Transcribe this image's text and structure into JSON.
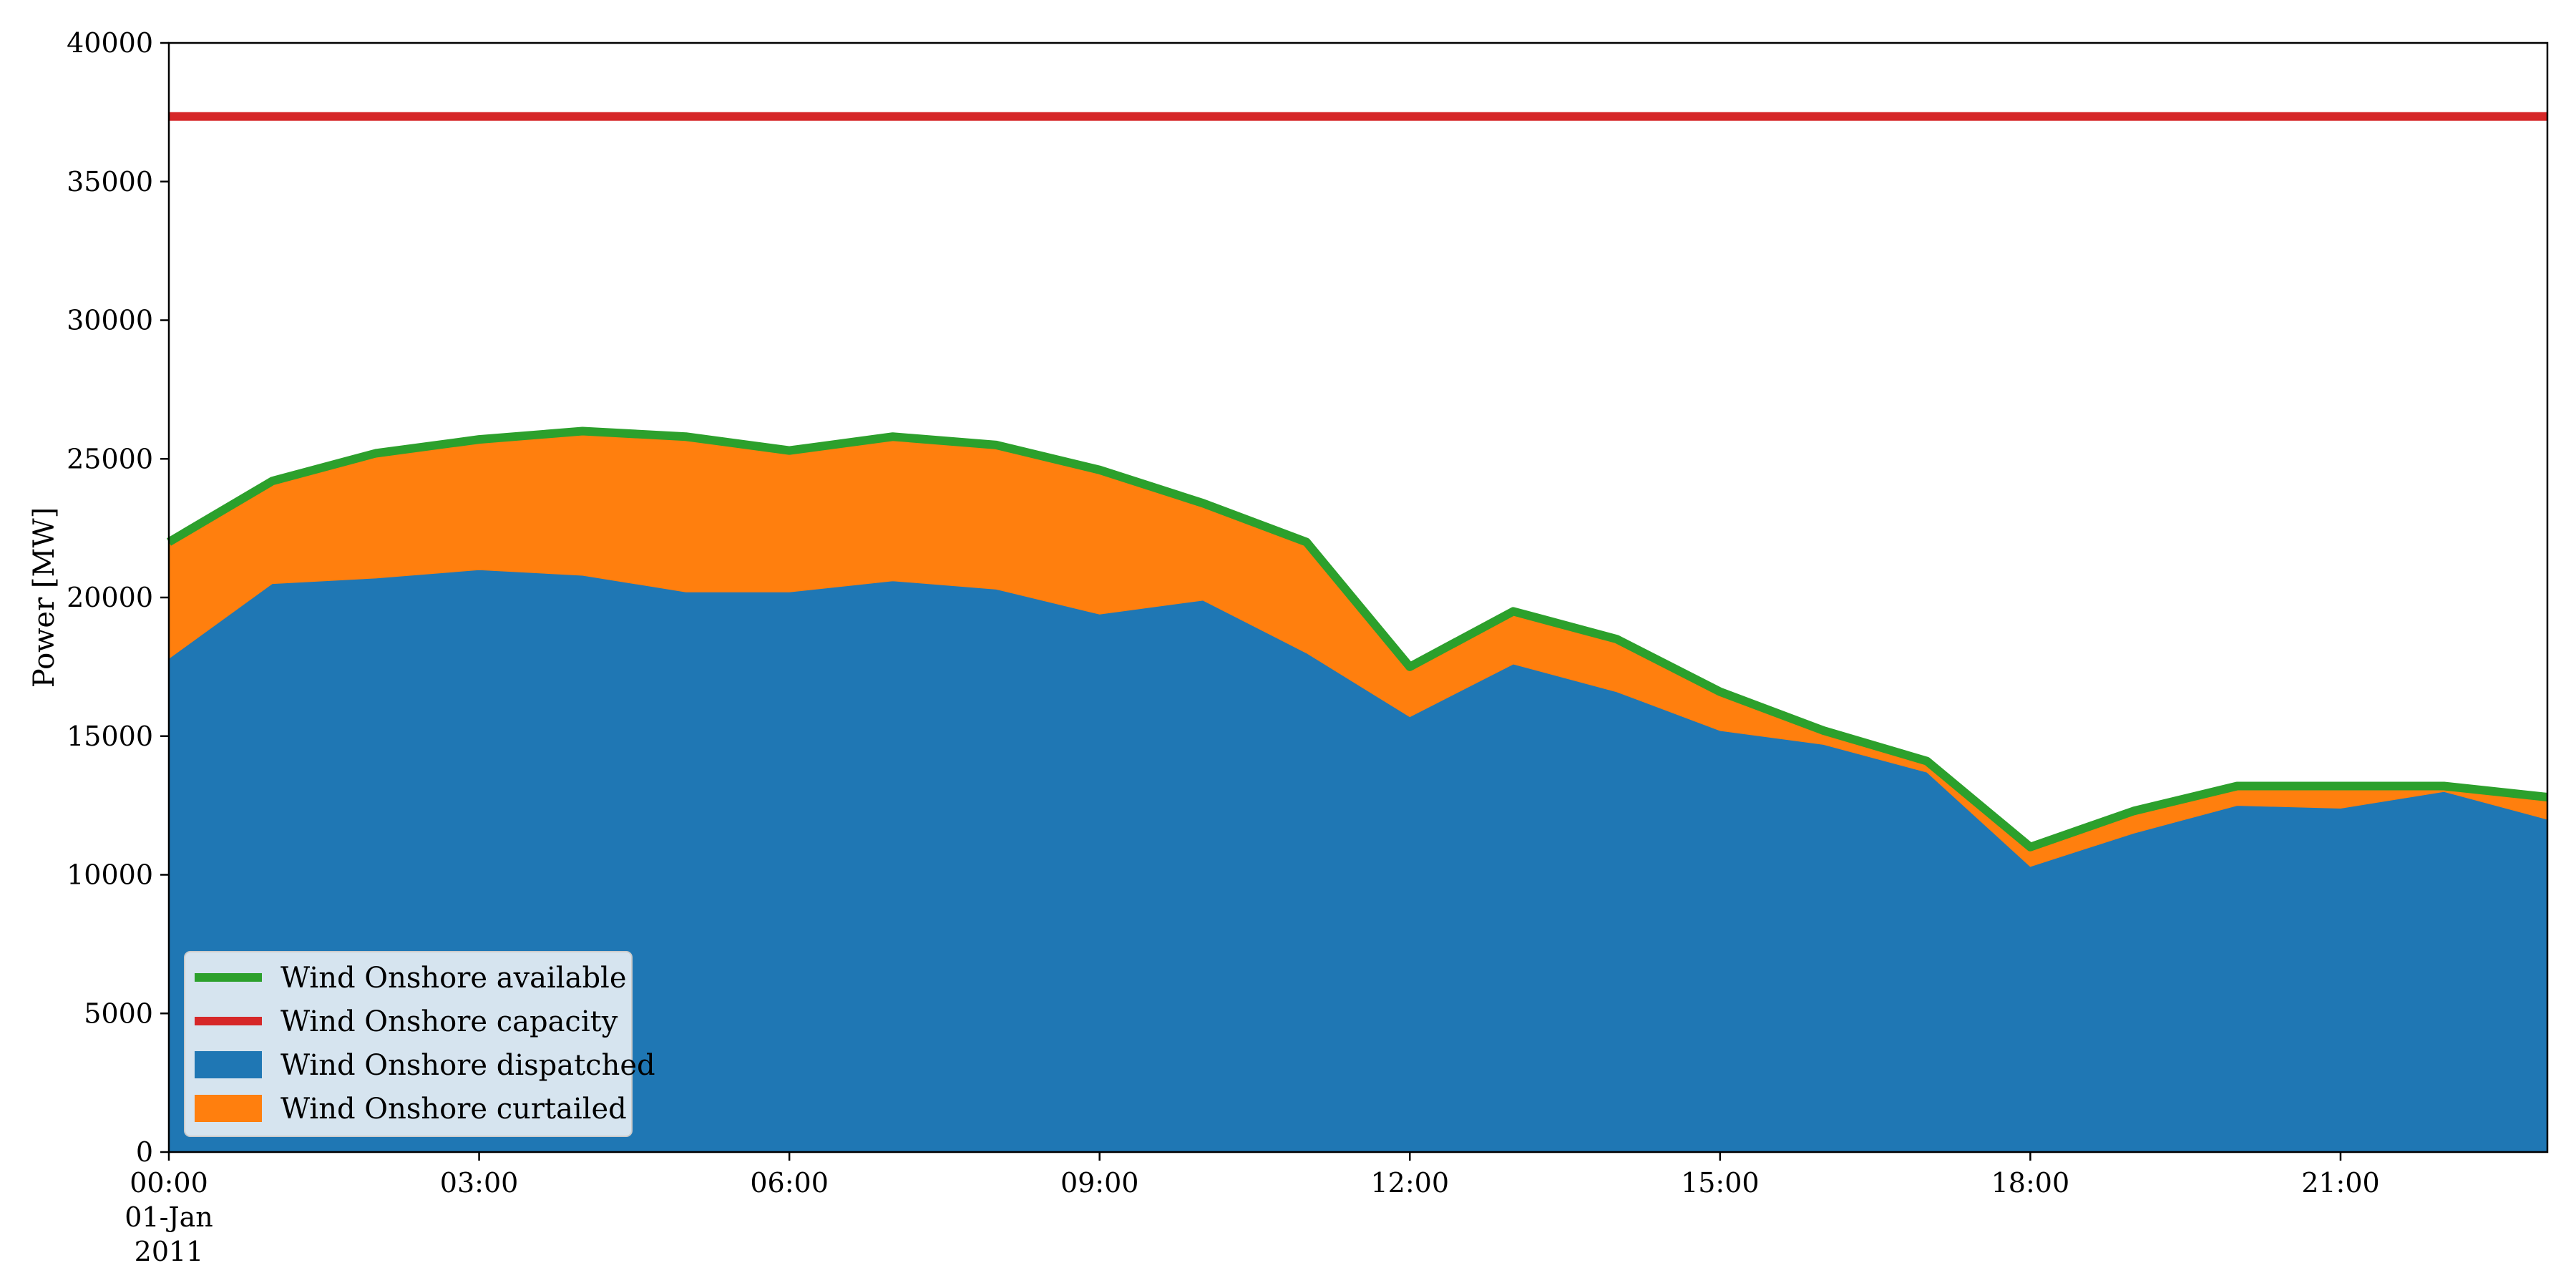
{
  "chart_data": {
    "type": "area",
    "title": "",
    "xlabel": "",
    "ylabel": "Power [MW]",
    "ylim": [
      0,
      40000
    ],
    "yticks": [
      0,
      5000,
      10000,
      15000,
      20000,
      25000,
      30000,
      35000,
      40000
    ],
    "x": [
      "00:00",
      "01:00",
      "02:00",
      "03:00",
      "04:00",
      "05:00",
      "06:00",
      "07:00",
      "08:00",
      "09:00",
      "10:00",
      "11:00",
      "12:00",
      "13:00",
      "14:00",
      "15:00",
      "16:00",
      "17:00",
      "18:00",
      "19:00",
      "20:00",
      "21:00",
      "22:00",
      "23:00"
    ],
    "xticks": [
      {
        "label": "00:00",
        "sublabels": [
          "01-Jan",
          "2011"
        ]
      },
      {
        "label": "03:00"
      },
      {
        "label": "06:00"
      },
      {
        "label": "09:00"
      },
      {
        "label": "12:00"
      },
      {
        "label": "15:00"
      },
      {
        "label": "18:00"
      },
      {
        "label": "21:00"
      }
    ],
    "series": [
      {
        "name": "Wind Onshore dispatched",
        "kind": "stacked-area",
        "color": "#1f77b4",
        "values": [
          17800,
          20500,
          20700,
          21000,
          20800,
          20200,
          20200,
          20600,
          20300,
          19400,
          19900,
          18000,
          15700,
          17600,
          16600,
          15200,
          14700,
          13700,
          10300,
          11500,
          12500,
          12400,
          13000,
          12000
        ]
      },
      {
        "name": "Wind Onshore curtailed",
        "kind": "stacked-area",
        "color": "#ff7f0e",
        "values": [
          4200,
          3700,
          4500,
          4700,
          5200,
          5600,
          5100,
          5200,
          5200,
          5200,
          3500,
          4000,
          1800,
          1900,
          1900,
          1400,
          500,
          400,
          700,
          800,
          700,
          800,
          200,
          800
        ]
      },
      {
        "name": "Wind Onshore available",
        "kind": "line",
        "color": "#2ca02c",
        "values": [
          22000,
          24200,
          25200,
          25700,
          26000,
          25800,
          25300,
          25800,
          25500,
          24600,
          23400,
          22000,
          17500,
          19500,
          18500,
          16600,
          15200,
          14100,
          11000,
          12300,
          13200,
          13200,
          13200,
          12800
        ]
      },
      {
        "name": "Wind Onshore capacity",
        "kind": "line",
        "color": "#d62728",
        "values": [
          37350,
          37350,
          37350,
          37350,
          37350,
          37350,
          37350,
          37350,
          37350,
          37350,
          37350,
          37350,
          37350,
          37350,
          37350,
          37350,
          37350,
          37350,
          37350,
          37350,
          37350,
          37350,
          37350,
          37350
        ]
      }
    ],
    "legend": {
      "placement": "lower-left",
      "entries": [
        {
          "label": "Wind Onshore available",
          "color": "#2ca02c",
          "marker": "line"
        },
        {
          "label": "Wind Onshore capacity",
          "color": "#d62728",
          "marker": "line"
        },
        {
          "label": "Wind Onshore dispatched",
          "color": "#1f77b4",
          "marker": "patch"
        },
        {
          "label": "Wind Onshore curtailed",
          "color": "#ff7f0e",
          "marker": "patch"
        }
      ]
    },
    "grid": false
  }
}
